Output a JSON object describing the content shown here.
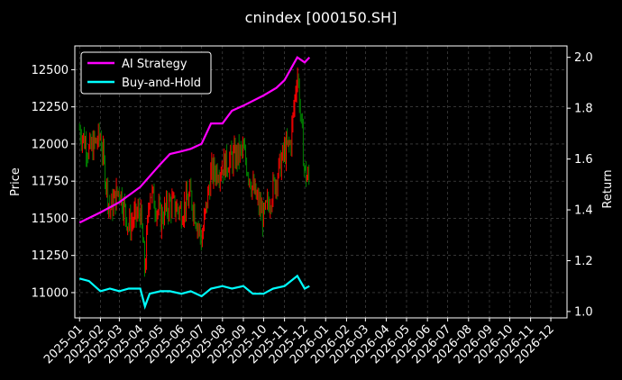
{
  "chart_data": {
    "type": "line",
    "title": "cnindex [000150.SH]",
    "ylabel_left": "Price",
    "ylabel_right": "Return",
    "grid": true,
    "legend": {
      "placement": "top-left",
      "entries": [
        {
          "name": "AI Strategy",
          "color": "#ff00ff"
        },
        {
          "name": "Buy-and-Hold",
          "color": "#00ffff"
        }
      ]
    },
    "x_ticks": [
      "2025-01",
      "2025-02",
      "2025-03",
      "2025-04",
      "2025-05",
      "2025-06",
      "2025-07",
      "2025-08",
      "2025-09",
      "2025-10",
      "2025-11",
      "2025-12",
      "2026-01",
      "2026-02",
      "2026-03",
      "2026-04",
      "2026-05",
      "2026-06",
      "2026-07",
      "2026-08",
      "2026-09",
      "2026-10",
      "2026-11",
      "2026-12"
    ],
    "xlim": [
      "2024-12-25",
      "2026-12-25"
    ],
    "y_left": {
      "ticks": [
        11000,
        11250,
        11500,
        11750,
        12000,
        12250,
        12500
      ],
      "lim": [
        10830,
        12660
      ]
    },
    "y_right": {
      "ticks": [
        "1.0",
        "1.2",
        "1.4",
        "1.6",
        "1.8",
        "2.0"
      ],
      "lim": [
        0.975,
        2.045
      ]
    },
    "price_close_series": {
      "dates": [
        "2025-01-01",
        "2025-01-15",
        "2025-02-01",
        "2025-02-15",
        "2025-03-01",
        "2025-03-15",
        "2025-04-01",
        "2025-04-08",
        "2025-04-15",
        "2025-05-01",
        "2025-05-15",
        "2025-06-01",
        "2025-06-15",
        "2025-07-01",
        "2025-07-15",
        "2025-08-01",
        "2025-08-15",
        "2025-09-01",
        "2025-09-15",
        "2025-10-01",
        "2025-10-15",
        "2025-11-01",
        "2025-11-10",
        "2025-11-20",
        "2025-12-01",
        "2025-12-08"
      ],
      "values": [
        12100,
        11950,
        12050,
        11550,
        11700,
        11450,
        11550,
        11150,
        11700,
        11500,
        11600,
        11550,
        11650,
        11350,
        11800,
        11850,
        11900,
        11950,
        11700,
        11500,
        11700,
        11950,
        12000,
        12500,
        11800,
        11750
      ],
      "color_up": "#ff0000",
      "color_down": "#008000"
    },
    "series": [
      {
        "name": "AI Strategy",
        "color": "#ff00ff",
        "dates": [
          "2025-01-01",
          "2025-02-01",
          "2025-03-01",
          "2025-04-01",
          "2025-05-01",
          "2025-05-15",
          "2025-06-01",
          "2025-06-15",
          "2025-07-01",
          "2025-07-15",
          "2025-08-01",
          "2025-08-15",
          "2025-09-01",
          "2025-10-01",
          "2025-10-20",
          "2025-11-01",
          "2025-11-20",
          "2025-12-01",
          "2025-12-08"
        ],
        "values": [
          1.35,
          1.39,
          1.43,
          1.49,
          1.58,
          1.62,
          1.63,
          1.64,
          1.66,
          1.74,
          1.74,
          1.79,
          1.81,
          1.85,
          1.88,
          1.91,
          2.0,
          1.98,
          2.0
        ]
      },
      {
        "name": "Buy-and-Hold",
        "color": "#00ffff",
        "dates": [
          "2025-01-01",
          "2025-01-15",
          "2025-02-01",
          "2025-02-15",
          "2025-03-01",
          "2025-03-15",
          "2025-04-01",
          "2025-04-08",
          "2025-04-15",
          "2025-05-01",
          "2025-05-15",
          "2025-06-01",
          "2025-06-15",
          "2025-07-01",
          "2025-07-15",
          "2025-08-01",
          "2025-08-15",
          "2025-09-01",
          "2025-09-15",
          "2025-10-01",
          "2025-10-15",
          "2025-11-01",
          "2025-11-20",
          "2025-12-01",
          "2025-12-08"
        ],
        "values": [
          1.13,
          1.12,
          1.08,
          1.09,
          1.08,
          1.09,
          1.09,
          1.02,
          1.07,
          1.08,
          1.08,
          1.07,
          1.08,
          1.06,
          1.09,
          1.1,
          1.09,
          1.1,
          1.07,
          1.07,
          1.09,
          1.1,
          1.14,
          1.09,
          1.1
        ]
      }
    ]
  }
}
